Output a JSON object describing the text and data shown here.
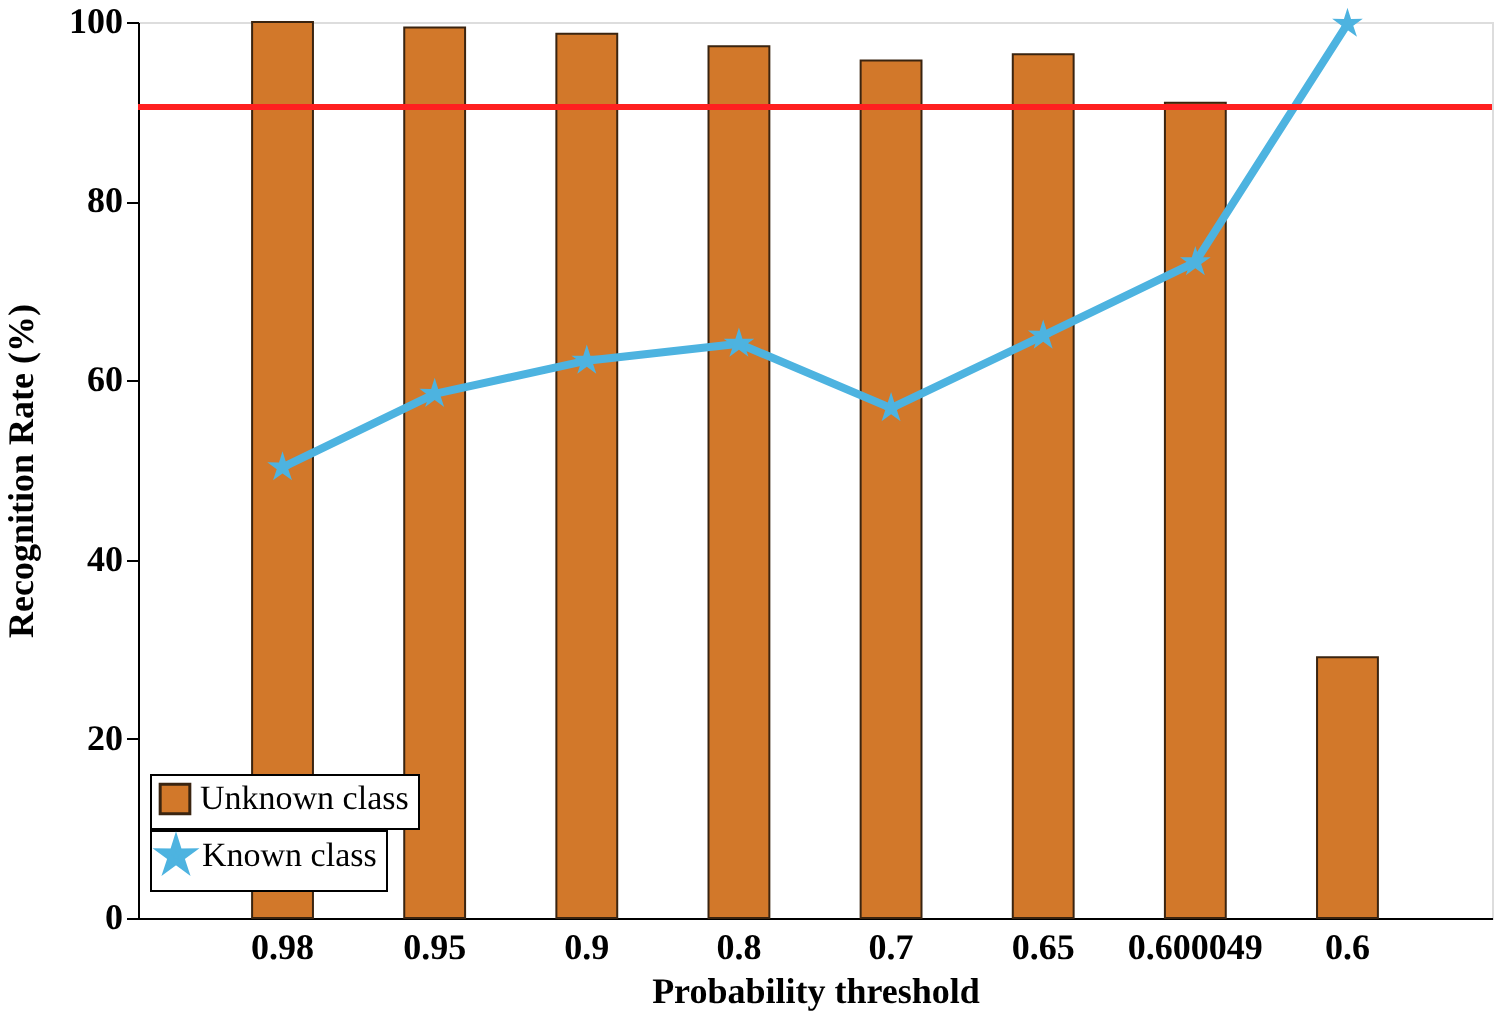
{
  "chart_data": {
    "type": "bar",
    "xlabel": "Probability threshold",
    "ylabel": "Recognition Rate (%)",
    "categories": [
      "0.98",
      "0.95",
      "0.9",
      "0.8",
      "0.7",
      "0.65",
      "0.600049",
      "0.6"
    ],
    "series": [
      {
        "name": "Unknown class",
        "color": "#d2782a",
        "values": [
          100,
          99.4,
          98.7,
          97.3,
          95.7,
          96.4,
          91.0,
          29.1
        ]
      },
      {
        "name": "Known class",
        "type": "line",
        "color": "#4db3e0",
        "marker": "star",
        "values": [
          50.3,
          58.5,
          62.2,
          64.1,
          56.9,
          65.0,
          73.2,
          99.8
        ]
      }
    ],
    "ylim": [
      0,
      100
    ],
    "yticks": [
      0,
      20,
      40,
      60,
      80,
      100
    ],
    "ref_lines": [
      {
        "axis": "y",
        "value": 90.5,
        "color": "#ff2020"
      }
    ],
    "grid": false,
    "legend": "bottom left"
  }
}
